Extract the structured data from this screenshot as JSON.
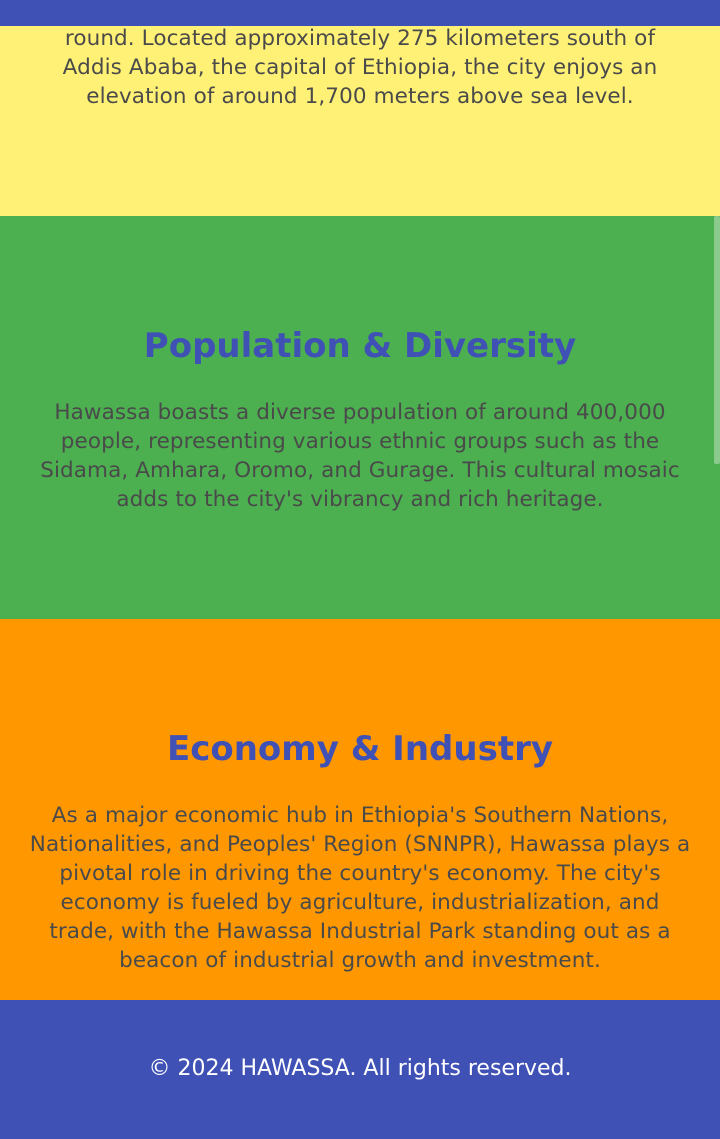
{
  "location": {
    "text": "round. Located approximately 275 kilometers south of Addis Ababa, the capital of Ethiopia, the city enjoys an elevation of around 1,700 meters above sea level."
  },
  "population": {
    "title": "Population & Diversity",
    "text": "Hawassa boasts a diverse population of around 400,000 people, representing various ethnic groups such as the Sidama, Amhara, Oromo, and Gurage. This cultural mosaic adds to the city's vibrancy and rich heritage."
  },
  "economy": {
    "title": "Economy & Industry",
    "text": "As a major economic hub in Ethiopia's Southern Nations, Nationalities, and Peoples' Region (SNNPR), Hawassa plays a pivotal role in driving the country's economy. The city's economy is fueled by agriculture, industrialization, and trade, with the Hawassa Industrial Park standing out as a beacon of industrial growth and investment."
  },
  "footer": {
    "copyright": "© 2024 HAWASSA. All rights reserved."
  },
  "colors": {
    "header": "#3f51b5",
    "location_bg": "#fff176",
    "population_bg": "#4caf50",
    "economy_bg": "#ff9800",
    "footer_bg": "#3f51b5",
    "heading": "#3f51b5"
  }
}
